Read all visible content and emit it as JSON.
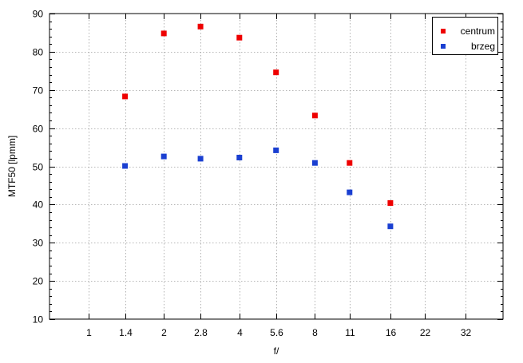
{
  "chart_data": {
    "type": "scatter",
    "title": "",
    "xlabel": "f/",
    "ylabel": "MTF50 [lpmm]",
    "x_scale": "log",
    "categories": [
      "1",
      "1.4",
      "2",
      "2.8",
      "4",
      "5.6",
      "8",
      "11",
      "16",
      "22",
      "32"
    ],
    "xlim": [
      0.7,
      45
    ],
    "ylim": [
      10,
      90
    ],
    "y_ticks": [
      10,
      20,
      30,
      40,
      50,
      60,
      70,
      80,
      90
    ],
    "grid": true,
    "legend_position": "top-right",
    "series": [
      {
        "name": "centrum",
        "color": "#ee0000",
        "x": [
          1.4,
          2,
          2.8,
          4,
          5.6,
          8,
          11,
          16
        ],
        "y": [
          68.3,
          84.8,
          86.6,
          83.7,
          74.6,
          63.3,
          50.9,
          40.4
        ]
      },
      {
        "name": "brzeg",
        "color": "#1a3fd1",
        "x": [
          1.4,
          2,
          2.8,
          4,
          5.6,
          8,
          11,
          16
        ],
        "y": [
          50.1,
          52.6,
          52.0,
          52.3,
          54.2,
          50.9,
          43.2,
          34.3
        ]
      }
    ]
  }
}
